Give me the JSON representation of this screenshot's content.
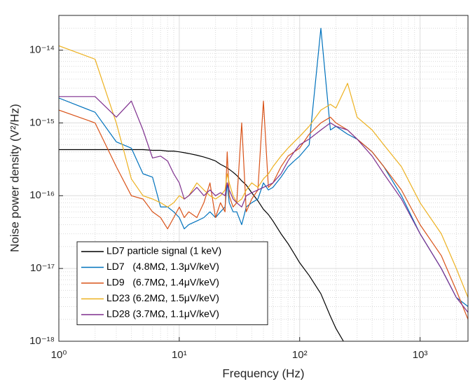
{
  "chart_data": {
    "type": "line",
    "xlabel": "Frequency (Hz)",
    "ylabel": "Noise power density (V²/Hz)",
    "xscale": "log",
    "yscale": "log",
    "xlim": [
      1,
      2500
    ],
    "ylim": [
      1e-18,
      3e-14
    ],
    "xticks": [
      {
        "value": 1,
        "label": "10⁰"
      },
      {
        "value": 10,
        "label": "10¹"
      },
      {
        "value": 100,
        "label": "10²"
      },
      {
        "value": 1000,
        "label": "10³"
      }
    ],
    "yticks": [
      {
        "value": 1e-18,
        "label": "10⁻¹⁸"
      },
      {
        "value": 1e-17,
        "label": "10⁻¹⁷"
      },
      {
        "value": 1e-16,
        "label": "10⁻¹⁶"
      },
      {
        "value": 1e-15,
        "label": "10⁻¹⁵"
      },
      {
        "value": 1e-14,
        "label": "10⁻¹⁴"
      }
    ],
    "grid": true,
    "minor_grid": true,
    "legend": "southwest",
    "x": [
      1,
      2,
      3,
      4,
      5,
      6,
      7,
      8,
      9,
      10,
      11,
      12,
      14,
      16,
      18,
      20,
      22,
      24,
      25,
      26,
      28,
      30,
      33,
      36,
      40,
      45,
      50,
      55,
      60,
      70,
      80,
      90,
      100,
      120,
      150,
      180,
      200,
      250,
      300,
      400,
      500,
      700,
      1000,
      1500,
      2000,
      2500
    ],
    "series": [
      {
        "name": "LD7 particle signal (1 keV)",
        "color": "#000000",
        "values": [
          4.3e-16,
          4.3e-16,
          4.3e-16,
          4.3e-16,
          4.3e-16,
          4.2e-16,
          4.2e-16,
          4.1e-16,
          4.1e-16,
          4e-16,
          3.9e-16,
          3.8e-16,
          3.6e-16,
          3.4e-16,
          3.2e-16,
          3e-16,
          2.7e-16,
          2.5e-16,
          2.4e-16,
          2.3e-16,
          2.1e-16,
          1.9e-16,
          1.6e-16,
          1.4e-16,
          1.1e-16,
          8.5e-17,
          6.5e-17,
          5.5e-17,
          4.5e-17,
          3e-17,
          2.2e-17,
          1.6e-17,
          1.2e-17,
          8e-18,
          4.5e-18,
          2.2e-18,
          1.5e-18,
          8e-19,
          null,
          null,
          null,
          null,
          null,
          null,
          null,
          null
        ]
      },
      {
        "name": "LD7   (4.8MΩ, 1.3μV/keV)",
        "color": "#0072BD",
        "values": [
          2.2e-15,
          1.4e-15,
          5.5e-16,
          4.5e-16,
          2e-16,
          1.8e-16,
          7e-17,
          7e-17,
          6e-17,
          5e-17,
          3.5e-17,
          4e-17,
          4.5e-17,
          5e-17,
          6e-17,
          5e-17,
          6e-17,
          7e-17,
          1.5e-16,
          8e-17,
          6e-17,
          6e-17,
          4e-17,
          7e-17,
          8e-17,
          9e-17,
          1.5e-16,
          1.2e-16,
          1.3e-16,
          1.8e-16,
          2.5e-16,
          3e-16,
          3.5e-16,
          5e-16,
          2e-14,
          8e-16,
          9e-16,
          7e-16,
          6e-16,
          4e-16,
          2.5e-16,
          1e-16,
          3e-17,
          1e-17,
          4e-18,
          3e-18
        ]
      },
      {
        "name": "LD9   (6.7MΩ, 1.4μV/keV)",
        "color": "#D95319",
        "values": [
          1.5e-15,
          1e-15,
          2.5e-16,
          1e-16,
          9e-17,
          6e-17,
          5e-17,
          3.5e-17,
          5e-17,
          7e-17,
          5e-17,
          6e-17,
          5e-17,
          8e-17,
          1.5e-16,
          5e-17,
          8e-17,
          6e-17,
          4e-16,
          1e-16,
          7e-17,
          8e-17,
          1e-15,
          6e-17,
          9e-17,
          1.2e-16,
          2e-15,
          1.3e-16,
          1.5e-16,
          2.5e-16,
          3.5e-16,
          4e-16,
          4.5e-16,
          7e-16,
          1e-15,
          1.2e-15,
          1e-15,
          8e-16,
          6e-16,
          4e-16,
          2.5e-16,
          1.2e-16,
          4e-17,
          1.5e-17,
          5e-18,
          2e-18
        ]
      },
      {
        "name": "LD23 (6.2MΩ, 1.5μV/keV)",
        "color": "#EDB120",
        "values": [
          1.15e-14,
          7.5e-15,
          1e-15,
          1.7e-16,
          1e-16,
          9e-17,
          8e-17,
          7e-17,
          8e-17,
          1e-16,
          9e-17,
          1e-16,
          1.5e-16,
          1.2e-16,
          1e-16,
          9e-17,
          1e-16,
          1.2e-16,
          2e-16,
          1.5e-16,
          1e-16,
          8e-17,
          9e-17,
          1.2e-16,
          1.5e-16,
          1.3e-16,
          1.7e-16,
          2e-16,
          2.5e-16,
          3.5e-16,
          4.5e-16,
          5.5e-16,
          6.5e-16,
          9e-16,
          1.5e-15,
          1.8e-15,
          1.6e-15,
          3.5e-15,
          1.2e-15,
          8e-16,
          5e-16,
          2.5e-16,
          8e-17,
          3e-17,
          1e-17,
          4e-18
        ]
      },
      {
        "name": "LD28 (3.7MΩ, 1.1μV/keV)",
        "color": "#7E2F8E",
        "values": [
          2.3e-15,
          2.3e-15,
          1.2e-15,
          2e-15,
          8e-16,
          3.3e-16,
          3.5e-16,
          3e-16,
          2e-16,
          1.5e-16,
          9e-17,
          1e-16,
          1.3e-16,
          1e-16,
          1.2e-16,
          1e-16,
          1.1e-16,
          1e-16,
          1.5e-16,
          1.2e-16,
          9e-17,
          8e-17,
          7e-17,
          1e-16,
          1.1e-16,
          1.2e-16,
          1.3e-16,
          1.4e-16,
          1.5e-16,
          2e-16,
          3e-16,
          4e-16,
          5e-16,
          6e-16,
          8e-16,
          1e-15,
          9e-16,
          8e-16,
          6e-16,
          3.5e-16,
          2e-16,
          9e-17,
          3e-17,
          1e-17,
          4e-18,
          2.5e-18
        ]
      }
    ]
  }
}
